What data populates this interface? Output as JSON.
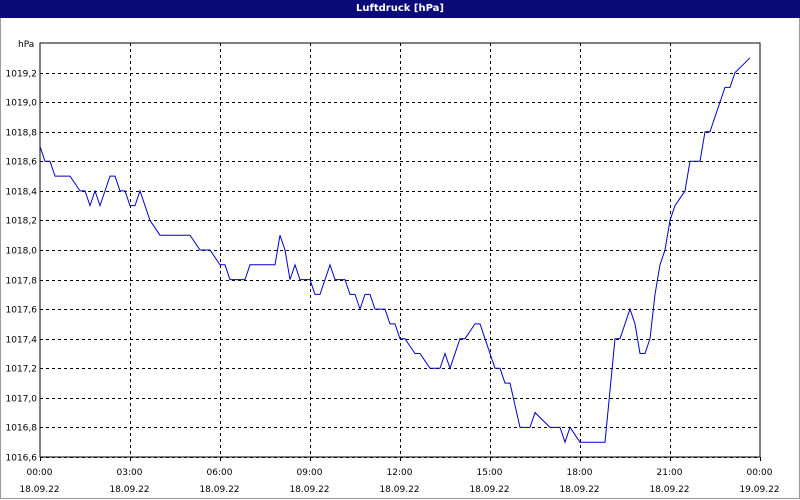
{
  "window": {
    "title": "Luftdruck [hPa]"
  },
  "colors": {
    "titlebar": "#0a0a78",
    "line": "#0000cc",
    "grid": "#000000"
  },
  "chart_data": {
    "type": "line",
    "title": "Luftdruck [hPa]",
    "ylabel": "hPa",
    "xlabel": "",
    "ylim": [
      1016.6,
      1019.4
    ],
    "xlim": [
      "18.09.22 00:00",
      "19.09.22 00:00"
    ],
    "grid": true,
    "x_ticks": [
      {
        "time": "00:00",
        "date": "18.09.22"
      },
      {
        "time": "03:00",
        "date": "18.09.22"
      },
      {
        "time": "06:00",
        "date": "18.09.22"
      },
      {
        "time": "09:00",
        "date": "18.09.22"
      },
      {
        "time": "12:00",
        "date": "18.09.22"
      },
      {
        "time": "15:00",
        "date": "18.09.22"
      },
      {
        "time": "18:00",
        "date": "18.09.22"
      },
      {
        "time": "21:00",
        "date": "18.09.22"
      },
      {
        "time": "00:00",
        "date": "19.09.22"
      }
    ],
    "y_ticks": [
      "1016,6",
      "1016,8",
      "1017,0",
      "1017,2",
      "1017,4",
      "1017,6",
      "1017,8",
      "1018,0",
      "1018,2",
      "1018,4",
      "1018,6",
      "1018,8",
      "1019,0",
      "1019,2"
    ],
    "series": [
      {
        "x": [
          "18.09.22 00:00",
          "18.09.22 00:10",
          "18.09.22 00:20",
          "18.09.22 00:30",
          "18.09.22 01:00",
          "18.09.22 01:20",
          "18.09.22 01:30",
          "18.09.22 01:40",
          "18.09.22 01:50",
          "18.09.22 02:00",
          "18.09.22 02:10",
          "18.09.22 02:20",
          "18.09.22 02:30",
          "18.09.22 02:40",
          "18.09.22 02:50",
          "18.09.22 03:00",
          "18.09.22 03:10",
          "18.09.22 03:20",
          "18.09.22 03:30",
          "18.09.22 03:40",
          "18.09.22 04:00",
          "18.09.22 04:30",
          "18.09.22 05:00",
          "18.09.22 05:20",
          "18.09.22 05:40",
          "18.09.22 06:00",
          "18.09.22 06:10",
          "18.09.22 06:20",
          "18.09.22 06:30",
          "18.09.22 06:50",
          "18.09.22 07:00",
          "18.09.22 07:10",
          "18.09.22 07:30",
          "18.09.22 07:50",
          "18.09.22 08:00",
          "18.09.22 08:10",
          "18.09.22 08:20",
          "18.09.22 08:30",
          "18.09.22 08:40",
          "18.09.22 08:50",
          "18.09.22 09:00",
          "18.09.22 09:10",
          "18.09.22 09:20",
          "18.09.22 09:30",
          "18.09.22 09:40",
          "18.09.22 09:50",
          "18.09.22 10:00",
          "18.09.22 10:10",
          "18.09.22 10:20",
          "18.09.22 10:30",
          "18.09.22 10:40",
          "18.09.22 10:50",
          "18.09.22 11:00",
          "18.09.22 11:10",
          "18.09.22 11:20",
          "18.09.22 11:30",
          "18.09.22 11:40",
          "18.09.22 11:50",
          "18.09.22 12:00",
          "18.09.22 12:10",
          "18.09.22 12:30",
          "18.09.22 12:40",
          "18.09.22 13:00",
          "18.09.22 13:10",
          "18.09.22 13:20",
          "18.09.22 13:30",
          "18.09.22 13:40",
          "18.09.22 14:00",
          "18.09.22 14:10",
          "18.09.22 14:30",
          "18.09.22 14:40",
          "18.09.22 14:50",
          "18.09.22 15:00",
          "18.09.22 15:10",
          "18.09.22 15:20",
          "18.09.22 15:30",
          "18.09.22 15:40",
          "18.09.22 16:00",
          "18.09.22 16:10",
          "18.09.22 16:20",
          "18.09.22 16:30",
          "18.09.22 17:00",
          "18.09.22 17:10",
          "18.09.22 17:20",
          "18.09.22 17:30",
          "18.09.22 17:40",
          "18.09.22 18:00",
          "18.09.22 18:20",
          "18.09.22 18:30",
          "18.09.22 18:40",
          "18.09.22 18:50",
          "18.09.22 19:10",
          "18.09.22 19:20",
          "18.09.22 19:30",
          "18.09.22 19:40",
          "18.09.22 19:50",
          "18.09.22 20:00",
          "18.09.22 20:10",
          "18.09.22 20:20",
          "18.09.22 20:30",
          "18.09.22 20:40",
          "18.09.22 20:50",
          "18.09.22 21:00",
          "18.09.22 21:10",
          "18.09.22 21:30",
          "18.09.22 21:40",
          "18.09.22 21:50",
          "18.09.22 22:00",
          "18.09.22 22:10",
          "18.09.22 22:20",
          "18.09.22 22:40",
          "18.09.22 22:50",
          "18.09.22 23:00",
          "18.09.22 23:10",
          "18.09.22 23:40"
        ],
        "y": [
          1018.7,
          1018.6,
          1018.6,
          1018.5,
          1018.5,
          1018.4,
          1018.4,
          1018.3,
          1018.4,
          1018.3,
          1018.4,
          1018.5,
          1018.5,
          1018.4,
          1018.4,
          1018.3,
          1018.3,
          1018.4,
          1018.3,
          1018.2,
          1018.1,
          1018.1,
          1018.1,
          1018.0,
          1018.0,
          1017.9,
          1017.9,
          1017.8,
          1017.8,
          1017.8,
          1017.9,
          1017.9,
          1017.9,
          1017.9,
          1018.1,
          1018.0,
          1017.8,
          1017.9,
          1017.8,
          1017.8,
          1017.8,
          1017.7,
          1017.7,
          1017.8,
          1017.9,
          1017.8,
          1017.8,
          1017.8,
          1017.7,
          1017.7,
          1017.6,
          1017.7,
          1017.7,
          1017.6,
          1017.6,
          1017.6,
          1017.5,
          1017.5,
          1017.4,
          1017.4,
          1017.3,
          1017.3,
          1017.2,
          1017.2,
          1017.2,
          1017.3,
          1017.2,
          1017.4,
          1017.4,
          1017.5,
          1017.5,
          1017.4,
          1017.3,
          1017.2,
          1017.2,
          1017.1,
          1017.1,
          1016.8,
          1016.8,
          1016.8,
          1016.9,
          1016.8,
          1016.8,
          1016.8,
          1016.7,
          1016.8,
          1016.7,
          1016.7,
          1016.7,
          1016.7,
          1016.7,
          1017.4,
          1017.4,
          1017.5,
          1017.6,
          1017.5,
          1017.3,
          1017.3,
          1017.4,
          1017.7,
          1017.9,
          1018.0,
          1018.2,
          1018.3,
          1018.4,
          1018.6,
          1018.6,
          1018.6,
          1018.8,
          1018.8,
          1019.0,
          1019.1,
          1019.1,
          1019.2,
          1019.3
        ]
      }
    ]
  }
}
